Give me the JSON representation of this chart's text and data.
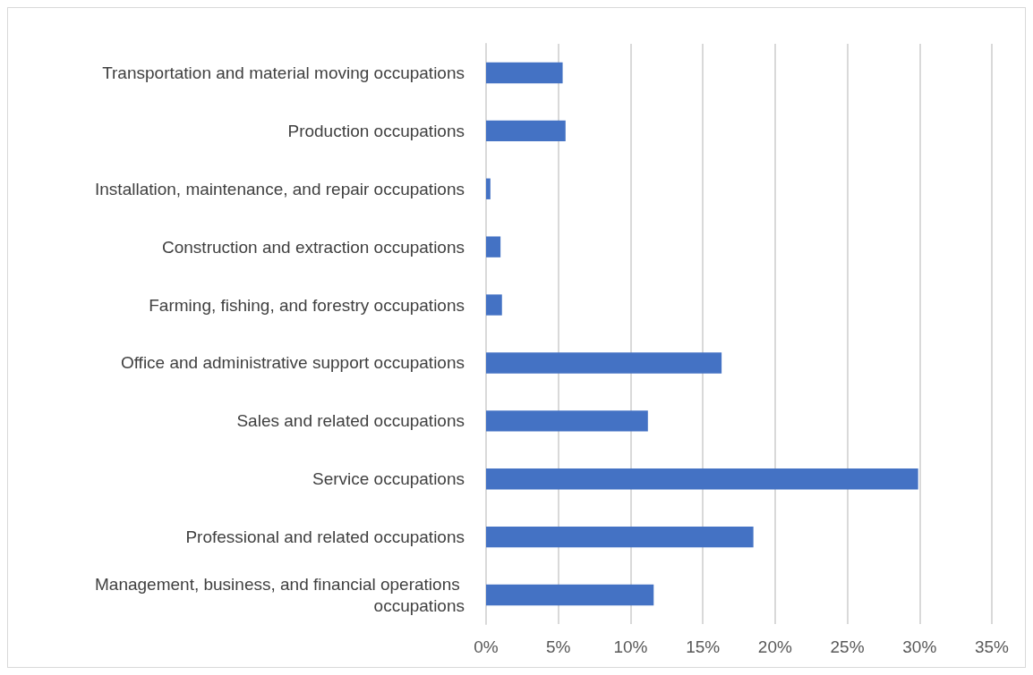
{
  "chart_data": {
    "type": "bar",
    "orientation": "horizontal",
    "categories": [
      "Transportation and material moving occupations",
      "Production occupations",
      "Installation, maintenance, and repair occupations",
      "Construction and extraction occupations",
      "Farming, fishing, and forestry occupations",
      "Office and administrative support occupations",
      "Sales and related occupations",
      "Service occupations",
      "Professional and related occupations",
      "Management, business, and financial operations occupations"
    ],
    "values": [
      5.3,
      5.5,
      0.3,
      1.0,
      1.1,
      16.3,
      11.2,
      29.9,
      18.5,
      11.6
    ],
    "color": "#4472c4",
    "xlim": [
      0,
      35
    ],
    "xticks": [
      {
        "value": 0,
        "label": "0%"
      },
      {
        "value": 5,
        "label": "5%"
      },
      {
        "value": 10,
        "label": "10%"
      },
      {
        "value": 15,
        "label": "15%"
      },
      {
        "value": 20,
        "label": "20%"
      },
      {
        "value": 25,
        "label": "25%"
      },
      {
        "value": 30,
        "label": "30%"
      },
      {
        "value": 35,
        "label": "35%"
      }
    ],
    "grid": "x"
  }
}
